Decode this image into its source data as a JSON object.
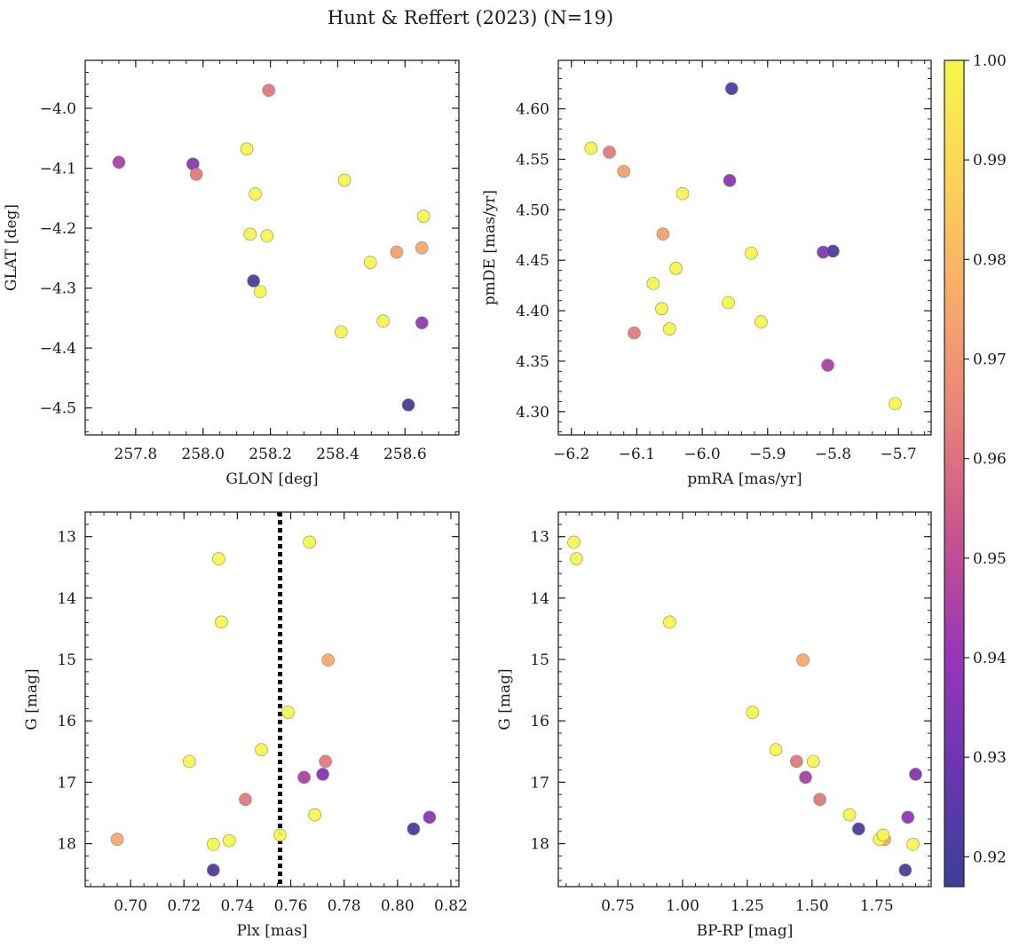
{
  "figure": {
    "suptitle": "Hunt & Reffert (2023) (N=19)"
  },
  "colorbar": {
    "range": [
      0.917,
      1.0
    ],
    "ticks": [
      "0.92",
      "0.93",
      "0.94",
      "0.95",
      "0.96",
      "0.97",
      "0.98",
      "0.99",
      "1.00"
    ],
    "tick_values": [
      0.92,
      0.93,
      0.94,
      0.95,
      0.96,
      0.97,
      0.98,
      0.99,
      1.0
    ],
    "colormap": "plasma",
    "colormap_stops": [
      "#3b3f96",
      "#6a36b0",
      "#9a37b8",
      "#c7548c",
      "#e7837a",
      "#f8ab6a",
      "#fcd356",
      "#f6f74a"
    ]
  },
  "chart_data": [
    {
      "type": "scatter",
      "xlabel": "GLON [deg]",
      "ylabel": "GLAT [deg]",
      "xlim": [
        257.65,
        258.76
      ],
      "ylim": [
        -4.545,
        -3.92
      ],
      "xticks": [
        "257.8",
        "258.0",
        "258.2",
        "258.4",
        "258.6"
      ],
      "xtick_values": [
        257.8,
        258.0,
        258.2,
        258.4,
        258.6
      ],
      "yticks": [
        "−4.0",
        "−4.1",
        "−4.2",
        "−4.3",
        "−4.4",
        "−4.5"
      ],
      "ytick_values": [
        -4.0,
        -4.1,
        -4.2,
        -4.3,
        -4.4,
        -4.5
      ],
      "x_minor": 0.05,
      "y_minor": 0.02,
      "invert_y": false,
      "points": [
        {
          "x": 257.75,
          "y": -4.09,
          "c": 0.945
        },
        {
          "x": 257.97,
          "y": -4.093,
          "c": 0.937
        },
        {
          "x": 257.98,
          "y": -4.11,
          "c": 0.962
        },
        {
          "x": 258.13,
          "y": -4.068,
          "c": 1.0
        },
        {
          "x": 258.195,
          "y": -3.97,
          "c": 0.962
        },
        {
          "x": 258.155,
          "y": -4.143,
          "c": 1.0
        },
        {
          "x": 258.14,
          "y": -4.21,
          "c": 1.0
        },
        {
          "x": 258.19,
          "y": -4.213,
          "c": 1.0
        },
        {
          "x": 258.15,
          "y": -4.288,
          "c": 0.922
        },
        {
          "x": 258.17,
          "y": -4.306,
          "c": 1.0
        },
        {
          "x": 258.42,
          "y": -4.12,
          "c": 1.0
        },
        {
          "x": 258.655,
          "y": -4.18,
          "c": 1.0
        },
        {
          "x": 258.497,
          "y": -4.257,
          "c": 1.0
        },
        {
          "x": 258.575,
          "y": -4.24,
          "c": 0.973
        },
        {
          "x": 258.65,
          "y": -4.233,
          "c": 0.976
        },
        {
          "x": 258.535,
          "y": -4.355,
          "c": 1.0
        },
        {
          "x": 258.65,
          "y": -4.358,
          "c": 0.94
        },
        {
          "x": 258.41,
          "y": -4.373,
          "c": 1.0
        },
        {
          "x": 258.61,
          "y": -4.495,
          "c": 0.92
        }
      ]
    },
    {
      "type": "scatter",
      "xlabel": "pmRA [mas/yr]",
      "ylabel": "pmDE [mas/yr]",
      "xlim": [
        -6.22,
        -5.65
      ],
      "ylim": [
        4.277,
        4.648
      ],
      "xticks": [
        "−6.2",
        "−6.1",
        "−6.0",
        "−5.9",
        "−5.8",
        "−5.7"
      ],
      "xtick_values": [
        -6.2,
        -6.1,
        -6.0,
        -5.9,
        -5.8,
        -5.7
      ],
      "yticks": [
        "4.30",
        "4.35",
        "4.40",
        "4.45",
        "4.50",
        "4.55",
        "4.60"
      ],
      "ytick_values": [
        4.3,
        4.35,
        4.4,
        4.45,
        4.5,
        4.55,
        4.6
      ],
      "x_minor": 0.02,
      "y_minor": 0.01,
      "invert_y": false,
      "points": [
        {
          "x": -5.955,
          "y": 4.62,
          "c": 0.922
        },
        {
          "x": -6.17,
          "y": 4.561,
          "c": 1.0
        },
        {
          "x": -6.142,
          "y": 4.557,
          "c": 0.962
        },
        {
          "x": -6.12,
          "y": 4.538,
          "c": 0.973
        },
        {
          "x": -5.958,
          "y": 4.529,
          "c": 0.937
        },
        {
          "x": -6.03,
          "y": 4.516,
          "c": 1.0
        },
        {
          "x": -6.06,
          "y": 4.476,
          "c": 0.973
        },
        {
          "x": -5.815,
          "y": 4.458,
          "c": 0.935
        },
        {
          "x": -5.8,
          "y": 4.459,
          "c": 0.922
        },
        {
          "x": -5.925,
          "y": 4.457,
          "c": 1.0
        },
        {
          "x": -6.04,
          "y": 4.442,
          "c": 1.0
        },
        {
          "x": -6.075,
          "y": 4.427,
          "c": 1.0
        },
        {
          "x": -5.96,
          "y": 4.408,
          "c": 1.0
        },
        {
          "x": -6.062,
          "y": 4.402,
          "c": 1.0
        },
        {
          "x": -5.91,
          "y": 4.389,
          "c": 1.0
        },
        {
          "x": -6.05,
          "y": 4.382,
          "c": 1.0
        },
        {
          "x": -6.104,
          "y": 4.378,
          "c": 0.962
        },
        {
          "x": -5.808,
          "y": 4.346,
          "c": 0.945
        },
        {
          "x": -5.705,
          "y": 4.308,
          "c": 1.0
        }
      ]
    },
    {
      "type": "scatter",
      "xlabel": "Plx [mas]",
      "ylabel": "G [mag]",
      "xlim": [
        0.683,
        0.823
      ],
      "ylim": [
        12.6,
        18.7
      ],
      "xticks": [
        "0.70",
        "0.72",
        "0.74",
        "0.76",
        "0.78",
        "0.80",
        "0.82"
      ],
      "xtick_values": [
        0.7,
        0.72,
        0.74,
        0.76,
        0.78,
        0.8,
        0.82
      ],
      "yticks": [
        "13",
        "14",
        "15",
        "16",
        "17",
        "18"
      ],
      "ytick_values": [
        13,
        14,
        15,
        16,
        17,
        18
      ],
      "x_minor": 0.005,
      "y_minor": 0.2,
      "invert_y": true,
      "vline": {
        "x": 0.756,
        "style": "dotted"
      },
      "points": [
        {
          "x": 0.767,
          "y": 13.09,
          "c": 1.0
        },
        {
          "x": 0.733,
          "y": 13.36,
          "c": 1.0
        },
        {
          "x": 0.734,
          "y": 14.39,
          "c": 1.0
        },
        {
          "x": 0.774,
          "y": 15.01,
          "c": 0.976
        },
        {
          "x": 0.759,
          "y": 15.86,
          "c": 1.0
        },
        {
          "x": 0.749,
          "y": 16.47,
          "c": 1.0
        },
        {
          "x": 0.722,
          "y": 16.66,
          "c": 1.0
        },
        {
          "x": 0.773,
          "y": 16.66,
          "c": 0.962
        },
        {
          "x": 0.765,
          "y": 16.92,
          "c": 0.945
        },
        {
          "x": 0.772,
          "y": 16.87,
          "c": 0.935
        },
        {
          "x": 0.743,
          "y": 17.28,
          "c": 0.962
        },
        {
          "x": 0.769,
          "y": 17.53,
          "c": 1.0
        },
        {
          "x": 0.812,
          "y": 17.57,
          "c": 0.937
        },
        {
          "x": 0.806,
          "y": 17.76,
          "c": 0.922
        },
        {
          "x": 0.756,
          "y": 17.86,
          "c": 1.0
        },
        {
          "x": 0.695,
          "y": 17.93,
          "c": 0.976
        },
        {
          "x": 0.737,
          "y": 17.95,
          "c": 1.0
        },
        {
          "x": 0.731,
          "y": 18.01,
          "c": 1.0
        },
        {
          "x": 0.731,
          "y": 18.43,
          "c": 0.922
        }
      ]
    },
    {
      "type": "scatter",
      "xlabel": "BP-RP [mag]",
      "ylabel": "G [mag]",
      "xlim": [
        0.52,
        1.96
      ],
      "ylim": [
        12.6,
        18.7
      ],
      "xticks": [
        "0.75",
        "1.00",
        "1.25",
        "1.50",
        "1.75"
      ],
      "xtick_values": [
        0.75,
        1.0,
        1.25,
        1.5,
        1.75
      ],
      "yticks": [
        "13",
        "14",
        "15",
        "16",
        "17",
        "18"
      ],
      "ytick_values": [
        13,
        14,
        15,
        16,
        17,
        18
      ],
      "x_minor": 0.05,
      "y_minor": 0.2,
      "invert_y": true,
      "points": [
        {
          "x": 0.58,
          "y": 13.09,
          "c": 1.0
        },
        {
          "x": 0.59,
          "y": 13.36,
          "c": 1.0
        },
        {
          "x": 0.95,
          "y": 14.39,
          "c": 1.0
        },
        {
          "x": 1.465,
          "y": 15.01,
          "c": 0.976
        },
        {
          "x": 1.27,
          "y": 15.86,
          "c": 1.0
        },
        {
          "x": 1.36,
          "y": 16.47,
          "c": 1.0
        },
        {
          "x": 1.44,
          "y": 16.66,
          "c": 0.962
        },
        {
          "x": 1.505,
          "y": 16.66,
          "c": 1.0
        },
        {
          "x": 1.475,
          "y": 16.92,
          "c": 0.945
        },
        {
          "x": 1.9,
          "y": 16.87,
          "c": 0.935
        },
        {
          "x": 1.53,
          "y": 17.28,
          "c": 0.962
        },
        {
          "x": 1.645,
          "y": 17.53,
          "c": 1.0
        },
        {
          "x": 1.87,
          "y": 17.57,
          "c": 0.937
        },
        {
          "x": 1.68,
          "y": 17.76,
          "c": 0.922
        },
        {
          "x": 1.78,
          "y": 17.93,
          "c": 0.976
        },
        {
          "x": 1.76,
          "y": 17.93,
          "c": 1.0
        },
        {
          "x": 1.775,
          "y": 17.86,
          "c": 1.0
        },
        {
          "x": 1.89,
          "y": 18.01,
          "c": 1.0
        },
        {
          "x": 1.86,
          "y": 18.43,
          "c": 0.922
        }
      ]
    }
  ]
}
